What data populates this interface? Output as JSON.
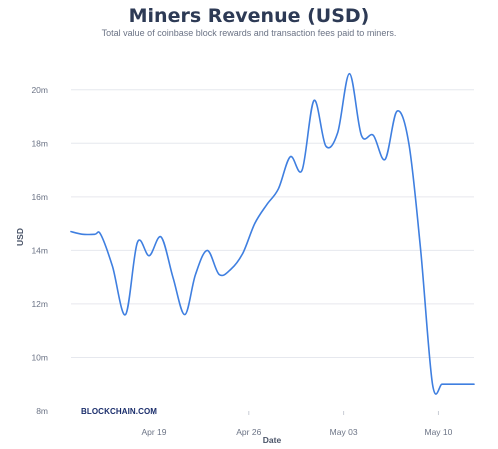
{
  "chart_data": {
    "type": "line",
    "title": "Miners Revenue (USD)",
    "subtitle": "Total value of coinbase block rewards and transaction fees paid to miners.",
    "xlabel": "Date",
    "ylabel": "USD",
    "watermark": "BLOCKCHAIN.COM",
    "xlim": [
      0,
      34
    ],
    "ylim": [
      8,
      21
    ],
    "grid": true,
    "legend": "none",
    "line_color": "#3f7fe0",
    "x_ticks": [
      {
        "x": 7,
        "label": "Apr 19"
      },
      {
        "x": 15,
        "label": "Apr 26"
      },
      {
        "x": 23,
        "label": "May 03"
      },
      {
        "x": 31,
        "label": "May 10"
      }
    ],
    "y_ticks": [
      {
        "y": 8,
        "label": "8m"
      },
      {
        "y": 10,
        "label": "10m"
      },
      {
        "y": 12,
        "label": "12m"
      },
      {
        "y": 14,
        "label": "14m"
      },
      {
        "y": 16,
        "label": "16m"
      },
      {
        "y": 18,
        "label": "18m"
      },
      {
        "y": 20,
        "label": "20m"
      }
    ],
    "series": [
      {
        "x": [
          0,
          1,
          2,
          2.5,
          3.5,
          4.6,
          5.6,
          6.6,
          7.6,
          8.6,
          9.6,
          10.5,
          11.5,
          12.5,
          13.5,
          14.5,
          15.5,
          16.5,
          17.5,
          18.5,
          19.5,
          20.5,
          21.5,
          22.5,
          23.5,
          24.5,
          25.5,
          26.5,
          27.5,
          28.5,
          29.5,
          30.5,
          31.3,
          32,
          33,
          34
        ],
        "y": [
          14.7,
          14.6,
          14.6,
          14.6,
          13.4,
          11.6,
          14.3,
          13.8,
          14.5,
          13.0,
          11.6,
          13.1,
          14.0,
          13.1,
          13.3,
          13.9,
          15.0,
          15.7,
          16.3,
          17.5,
          17.0,
          19.6,
          17.9,
          18.4,
          20.6,
          18.3,
          18.3,
          17.4,
          19.2,
          18.0,
          14.0,
          9.0,
          9.0,
          9.0,
          9.0,
          9.0
        ]
      }
    ]
  }
}
